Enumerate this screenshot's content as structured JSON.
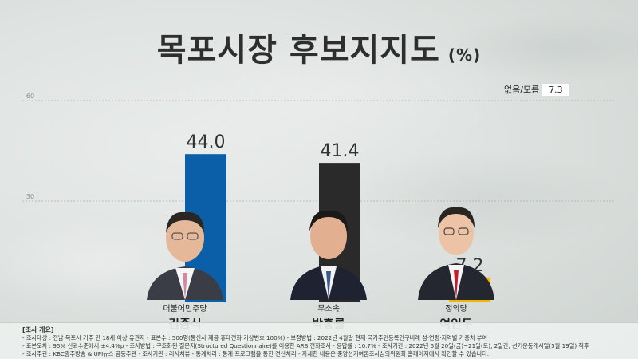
{
  "title": "목포시장 후보지지도",
  "unit": "(%)",
  "no_response": {
    "label": "없음/모름",
    "value": "7.3"
  },
  "chart_data": {
    "type": "bar",
    "title": "목포시장 후보지지도",
    "ylabel": "(%)",
    "ylim": [
      0,
      60
    ],
    "yticks": [
      30,
      60
    ],
    "grid": true,
    "categories": [
      "김종식",
      "박홍률",
      "여인두"
    ],
    "values": [
      44.0,
      41.4,
      7.2
    ],
    "value_labels": [
      "44.0",
      "41.4",
      "7.2"
    ],
    "colors": [
      "#0a5fa8",
      "#2a2a2a",
      "#f2b600"
    ]
  },
  "candidates": [
    {
      "party": "더불어민주당",
      "name": "김종식"
    },
    {
      "party": "무소속",
      "name": "박홍률"
    },
    {
      "party": "정의당",
      "name": "여인두"
    }
  ],
  "survey": {
    "heading": "[조사 개요]",
    "lines": [
      "- 조사대상 : 전남 목포시 거주 만 18세 이상 유권자 - 표본수 : 500명(통신사 제공 휴대전화 가상번호 100%) - 보정방법 : 2022년 4월말 현재 국가주민등록인구비례 성·연령·지역별 가중치 부여",
      "- 표본오차 : 95% 신뢰수준에서 ±4.4%p - 조사방법 : 구조화된 질문지(Structured Questionnaire)를 이용한 ARS 전화조사 - 응답률 : 10.7% - 조사기간 : 2022년 5월 20일(금)~21일(토), 2일간, 선거운동개시일(5월 19일) 직후",
      "- 조사주관 : KBC광주방송 & UPI뉴스 공동주관 - 조사기관 : 리서치뷰 - 통계처리 : 통계 프로그램을 통한 전산처리 - 자세한 내용은 중앙선거여론조사심의위원회 홈페이지에서 확인할 수 있습니다."
    ]
  }
}
